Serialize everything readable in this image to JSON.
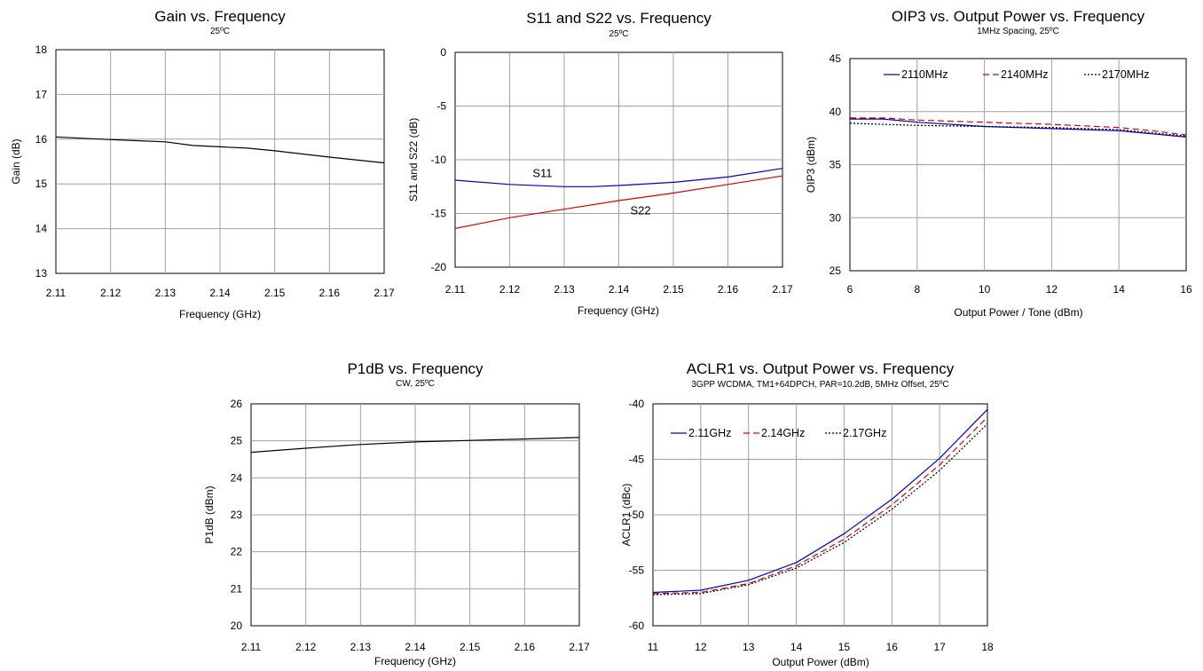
{
  "chart_data": [
    {
      "type": "line",
      "title": "Gain vs. Frequency",
      "subtitle": "25ºC",
      "xlabel": "Frequency (GHz)",
      "ylabel": "Gain (dB)",
      "xlim": [
        2.11,
        2.17
      ],
      "ylim": [
        13,
        18
      ],
      "xticks": [
        "2.11",
        "2.12",
        "2.13",
        "2.14",
        "2.15",
        "2.16",
        "2.17"
      ],
      "yticks": [
        "13",
        "14",
        "15",
        "16",
        "17",
        "18"
      ],
      "grid": true,
      "series": [
        {
          "color": "#000000",
          "dash": "solid",
          "x": [
            2.11,
            2.12,
            2.13,
            2.135,
            2.14,
            2.145,
            2.15,
            2.16,
            2.17
          ],
          "y": [
            16.05,
            15.99,
            15.94,
            15.86,
            15.83,
            15.8,
            15.74,
            15.6,
            15.47
          ]
        }
      ]
    },
    {
      "type": "line",
      "title": "S11 and S22 vs. Frequency",
      "subtitle": "25ºC",
      "xlabel": "Frequency (GHz)",
      "ylabel": "S11 and S22 (dB)",
      "xlim": [
        2.11,
        2.17
      ],
      "ylim": [
        -20,
        0
      ],
      "xticks": [
        "2.11",
        "2.12",
        "2.13",
        "2.14",
        "2.15",
        "2.16",
        "2.17"
      ],
      "yticks": [
        "-20",
        "-15",
        "-10",
        "-5",
        "0"
      ],
      "grid": true,
      "annotations": [
        {
          "text": "S11",
          "x": 2.126,
          "y": -11.6
        },
        {
          "text": "S22",
          "x": 2.144,
          "y": -15.1
        }
      ],
      "series": [
        {
          "name": "S11",
          "color": "#0000cc",
          "dash": "solid",
          "x": [
            2.11,
            2.12,
            2.13,
            2.135,
            2.14,
            2.15,
            2.16,
            2.17
          ],
          "y": [
            -11.9,
            -12.3,
            -12.5,
            -12.5,
            -12.4,
            -12.1,
            -11.6,
            -10.8
          ]
        },
        {
          "name": "S22",
          "color": "#dd0000",
          "dash": "solid",
          "x": [
            2.11,
            2.12,
            2.13,
            2.14,
            2.15,
            2.16,
            2.17
          ],
          "y": [
            -16.4,
            -15.4,
            -14.6,
            -13.8,
            -13.1,
            -12.3,
            -11.5
          ]
        }
      ]
    },
    {
      "type": "line",
      "title": "OIP3 vs. Output Power vs. Frequency",
      "subtitle": "1MHz Spacing, 25ºC",
      "xlabel": "Output Power / Tone (dBm)",
      "ylabel": "OIP3 (dBm)",
      "xlim": [
        6,
        16
      ],
      "ylim": [
        25,
        45
      ],
      "xticks": [
        "6",
        "8",
        "10",
        "12",
        "14",
        "16"
      ],
      "yticks": [
        "25",
        "30",
        "35",
        "40",
        "45"
      ],
      "grid": true,
      "legend": "top",
      "series": [
        {
          "name": "2110MHz",
          "color": "#0000cc",
          "dash": "solid",
          "x": [
            6,
            7,
            8,
            10,
            12,
            14,
            15,
            16
          ],
          "y": [
            39.3,
            39.3,
            39.0,
            38.6,
            38.4,
            38.2,
            37.9,
            37.6
          ]
        },
        {
          "name": "2140MHz",
          "color": "#dd0000",
          "dash": "dashed",
          "x": [
            6,
            7,
            8,
            10,
            12,
            14,
            15,
            16
          ],
          "y": [
            39.4,
            39.4,
            39.2,
            39.0,
            38.8,
            38.5,
            38.2,
            37.8
          ]
        },
        {
          "name": "2170MHz",
          "color": "#000000",
          "dash": "dotted",
          "x": [
            6,
            7,
            8,
            10,
            12,
            14,
            15,
            16
          ],
          "y": [
            38.9,
            38.8,
            38.7,
            38.6,
            38.5,
            38.3,
            38.0,
            37.7
          ]
        }
      ]
    },
    {
      "type": "line",
      "title": "P1dB vs. Frequency",
      "subtitle": "CW, 25ºC",
      "xlabel": "Frequency (GHz)",
      "ylabel": "P1dB (dBm)",
      "xlim": [
        2.11,
        2.17
      ],
      "ylim": [
        20,
        26
      ],
      "xticks": [
        "2.11",
        "2.12",
        "2.13",
        "2.14",
        "2.15",
        "2.16",
        "2.17"
      ],
      "yticks": [
        "20",
        "21",
        "22",
        "23",
        "24",
        "25",
        "26"
      ],
      "grid": true,
      "series": [
        {
          "color": "#000000",
          "dash": "solid",
          "x": [
            2.11,
            2.12,
            2.13,
            2.14,
            2.15,
            2.16,
            2.17
          ],
          "y": [
            24.69,
            24.8,
            24.9,
            24.97,
            25.01,
            25.05,
            25.09
          ]
        }
      ]
    },
    {
      "type": "line",
      "title": "ACLR1 vs. Output Power vs. Frequency",
      "subtitle": "3GPP WCDMA, TM1+64DPCH, PAR=10.2dB, 5MHz Offset, 25ºC",
      "xlabel": "Output Power (dBm)",
      "ylabel": "ACLR1 (dBc)",
      "xlim": [
        11,
        18
      ],
      "ylim": [
        -60,
        -40
      ],
      "xticks": [
        "11",
        "12",
        "13",
        "14",
        "15",
        "16",
        "17",
        "18"
      ],
      "yticks": [
        "-60",
        "-55",
        "-50",
        "-45",
        "-40"
      ],
      "grid": true,
      "legend": "top-left",
      "series": [
        {
          "name": "2.11GHz",
          "color": "#0000cc",
          "dash": "solid",
          "x": [
            11,
            12,
            13,
            14,
            15,
            16,
            17,
            18
          ],
          "y": [
            -57.0,
            -56.8,
            -55.9,
            -54.3,
            -51.7,
            -48.6,
            -44.9,
            -40.5
          ]
        },
        {
          "name": "2.14GHz",
          "color": "#dd0000",
          "dash": "dashed",
          "x": [
            11,
            12,
            13,
            14,
            15,
            16,
            17,
            18
          ],
          "y": [
            -57.1,
            -57.0,
            -56.2,
            -54.6,
            -52.2,
            -49.1,
            -45.5,
            -41.2
          ]
        },
        {
          "name": "2.17GHz",
          "color": "#000000",
          "dash": "dotted",
          "x": [
            11,
            12,
            13,
            14,
            15,
            16,
            17,
            18
          ],
          "y": [
            -57.2,
            -57.1,
            -56.3,
            -54.8,
            -52.5,
            -49.5,
            -46.0,
            -41.8
          ]
        }
      ]
    }
  ]
}
